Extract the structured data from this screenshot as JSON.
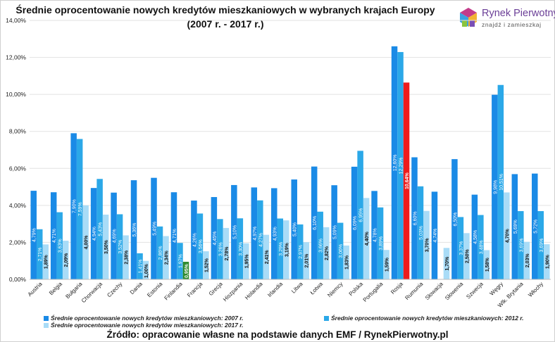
{
  "title": {
    "line1": "Średnie oprocentowanie nowych kredytów mieszkaniowych w wybranych krajach Europy",
    "line2": "(2007 r. - 2017 r.)"
  },
  "logo": {
    "name": "Rynek Pierwotny",
    "tagline": "znajdź i zamieszkaj",
    "icon": "house-cubes-logo-icon"
  },
  "source": "Źródło: opracowanie własne na podstawie danych EMF / RynekPierwotny.pl",
  "colors": {
    "s2007": "#1a8ae6",
    "s2012": "#2ba8e8",
    "s2017": "#a9dcf7",
    "highlight_2017_finlandia": "#2e8b2e",
    "highlight_2017_rosja": "#ee1c1c"
  },
  "chart_data": {
    "type": "bar",
    "title": "Średnie oprocentowanie nowych kredytów mieszkaniowych w wybranych krajach Europy (2007 r. - 2017 r.)",
    "ylim": [
      0,
      14
    ],
    "yticks": [
      "0,00%",
      "2,00%",
      "4,00%",
      "6,00%",
      "8,00%",
      "10,00%",
      "12,00%",
      "14,00%"
    ],
    "grid": true,
    "legend_position": "bottom",
    "categories": [
      "Austria",
      "Belgia",
      "Bułgaria",
      "Chorwacja",
      "Czechy",
      "Dania",
      "Estonia",
      "Finlandia",
      "Francja",
      "Grecja",
      "Hiszpania",
      "Holandia",
      "Irlandia",
      "Litwa",
      "Łotwa",
      "Niemcy",
      "Polska",
      "Portugalia",
      "Rosja",
      "Rumunia",
      "Słowacja",
      "Słowenia",
      "Szwecja",
      "Węgry",
      "Wlk. Brytania",
      "Włochy"
    ],
    "series": [
      {
        "name": "Średnie oprocentowanie nowych kredytów mieszkaniowych: 2007 r.",
        "values": [
          4.79,
          4.71,
          7.9,
          4.94,
          4.69,
          5.36,
          5.49,
          4.71,
          4.26,
          4.45,
          5.1,
          4.97,
          4.93,
          5.4,
          6.1,
          5.09,
          6.09,
          4.78,
          12.6,
          6.6,
          4.74,
          6.5,
          4.58,
          9.98,
          5.69,
          5.72
        ],
        "labels": [
          "4,79%",
          "4,71%",
          "7,90%",
          "4,94%",
          "4,69%",
          "5,36%",
          "5,49%",
          "4,71%",
          "4,26%",
          "4,45%",
          "5,10%",
          "4,97%",
          "4,93%",
          "5,40%",
          "6,10%",
          "5,09%",
          "6,09%",
          "4,78%",
          "12,60%",
          "6,60%",
          "4,74%",
          "6,50%",
          "4,58%",
          "9,98%",
          "5,69%",
          "5,72%"
        ]
      },
      {
        "name": "Średnie oprocentowanie nowych kredytów mieszkaniowych: 2012 r.",
        "values": [
          2.71,
          3.63,
          7.59,
          5.43,
          3.52,
          1.41,
          2.86,
          1.97,
          3.56,
          3.26,
          3.3,
          4.27,
          3.29,
          2.97,
          3.66,
          3.06,
          6.95,
          3.89,
          12.29,
          5.03,
          null,
          3.37,
          3.48,
          10.51,
          3.69,
          3.69
        ],
        "labels": [
          "2,71%",
          "3,63%",
          "7,59%",
          "5,43%",
          "3,52%",
          "1,41%",
          "2,86%",
          "1,97%",
          "3,56%",
          "3,26%",
          "3,30%",
          "4,27%",
          "3,29%",
          "2,97%",
          "3,66%",
          "3,06%",
          "6,95%",
          "3,89%",
          "12,29%",
          "5,03%",
          "",
          "3,37%",
          "3,48%",
          "10,51%",
          "3,69%",
          "3,69%"
        ]
      },
      {
        "name": "Średnie oprocentowanie nowych kredytów mieszkaniowych: 2017 r.",
        "values": [
          1.89,
          2.09,
          4.0,
          3.5,
          2.38,
          1.0,
          2.34,
          0.95,
          1.52,
          2.78,
          1.95,
          2.41,
          3.19,
          2.01,
          2.82,
          1.83,
          4.4,
          1.59,
          10.64,
          3.7,
          1.7,
          2.5,
          1.58,
          4.7,
          2.03,
          1.9
        ],
        "labels": [
          "1,89%",
          "2,09%",
          "4,00%",
          "3,50%",
          "2,38%",
          "1,00%",
          "2,34%",
          "0,95%",
          "1,52%",
          "2,78%",
          "1,95%",
          "2,41%",
          "3,19%",
          "2,01%",
          "2,82%",
          "1,83%",
          "4,40%",
          "1,59%",
          "10,64%",
          "3,70%",
          "1,70%",
          "2,50%",
          "1,58%",
          "4,70%",
          "2,03%",
          "1,90%"
        ]
      }
    ]
  }
}
